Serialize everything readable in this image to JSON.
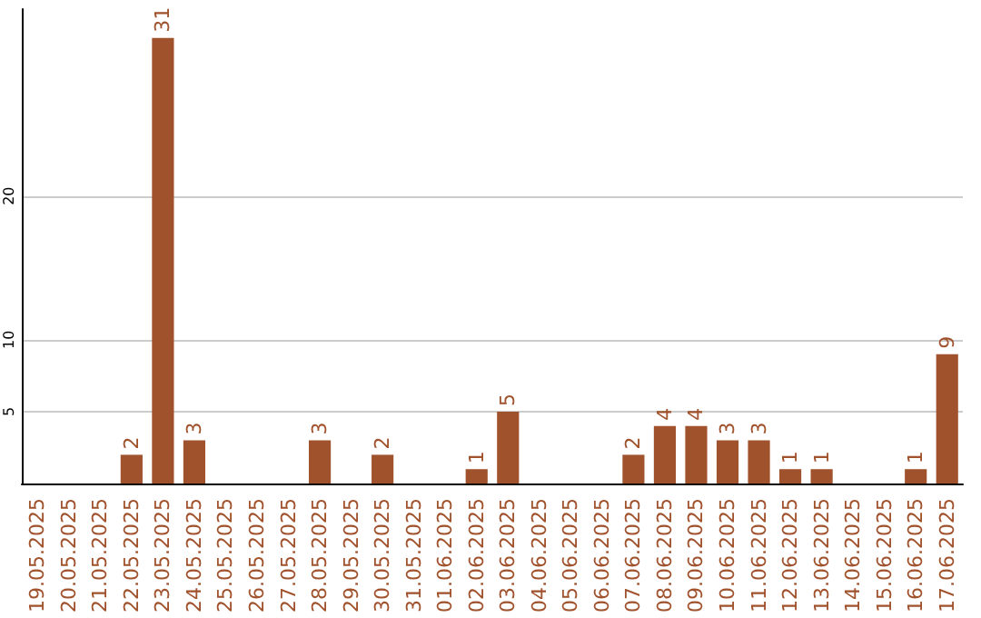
{
  "chart_data": {
    "type": "bar",
    "categories": [
      "19.05.2025",
      "20.05.2025",
      "21.05.2025",
      "22.05.2025",
      "23.05.2025",
      "24.05.2025",
      "25.05.2025",
      "26.05.2025",
      "27.05.2025",
      "28.05.2025",
      "29.05.2025",
      "30.05.2025",
      "31.05.2025",
      "01.06.2025",
      "02.06.2025",
      "03.06.2025",
      "04.06.2025",
      "05.06.2025",
      "06.06.2025",
      "07.06.2025",
      "08.06.2025",
      "09.06.2025",
      "10.06.2025",
      "11.06.2025",
      "12.06.2025",
      "13.06.2025",
      "14.06.2025",
      "15.06.2025",
      "16.06.2025",
      "17.06.2025"
    ],
    "values": [
      0,
      0,
      0,
      2,
      31,
      3,
      0,
      0,
      0,
      3,
      0,
      2,
      0,
      0,
      1,
      5,
      0,
      0,
      0,
      2,
      4,
      4,
      3,
      3,
      1,
      1,
      0,
      0,
      1,
      9
    ],
    "value_labels": [
      null,
      null,
      null,
      "2",
      "31",
      "3",
      null,
      null,
      null,
      "3",
      null,
      "2",
      null,
      null,
      "1",
      "5",
      null,
      null,
      null,
      "2",
      "4",
      "4",
      "3",
      "3",
      "1",
      "1",
      null,
      null,
      "1",
      "9"
    ],
    "color": "#a0522d",
    "ylim": [
      0,
      33
    ],
    "yticks": [
      5,
      10,
      20
    ],
    "grid": "y"
  }
}
